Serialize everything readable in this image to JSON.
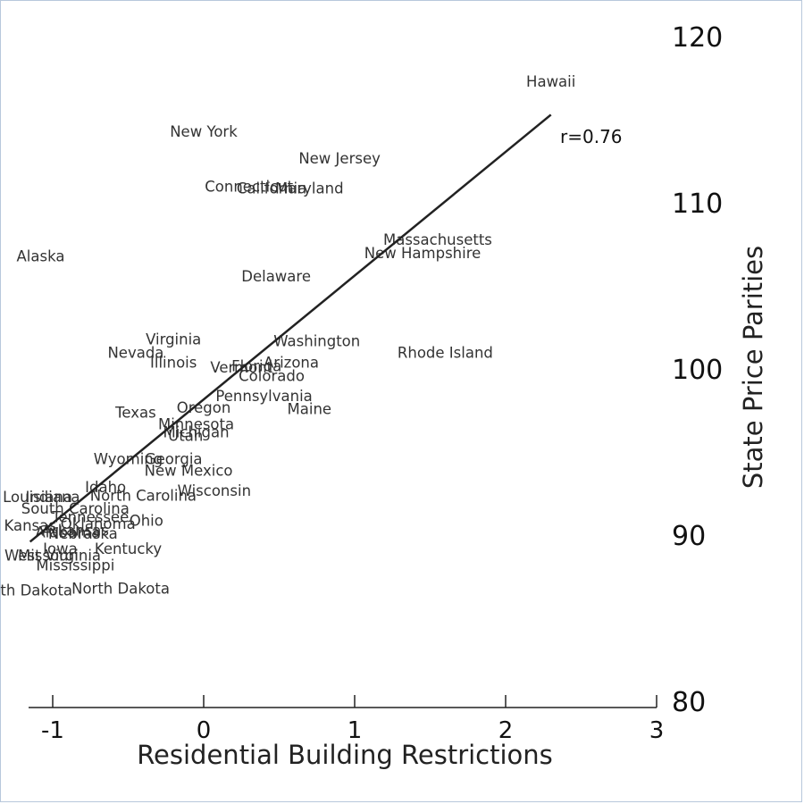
{
  "chart_data": {
    "type": "scatter",
    "xlabel": "Residential Building Restrictions",
    "ylabel": "State Price Parities",
    "xlim": [
      -1.15,
      3.0
    ],
    "ylim": [
      80,
      121
    ],
    "x_ticks": [
      -1,
      0,
      1,
      2,
      3
    ],
    "y_ticks": [
      80,
      90,
      100,
      110,
      120
    ],
    "annotation": "r=0.76",
    "trend_line": {
      "x": [
        -1.15,
        2.3
      ],
      "y": [
        89.6,
        115.3
      ]
    },
    "points": [
      {
        "label": "Hawaii",
        "x": 2.3,
        "y": 117.3
      },
      {
        "label": "New York",
        "x": 0.0,
        "y": 114.3
      },
      {
        "label": "New Jersey",
        "x": 0.9,
        "y": 112.7
      },
      {
        "label": "Connecticut",
        "x": 0.3,
        "y": 111.0
      },
      {
        "label": "California",
        "x": 0.45,
        "y": 110.9
      },
      {
        "label": "Maryland",
        "x": 0.7,
        "y": 110.9
      },
      {
        "label": "Massachusetts",
        "x": 1.55,
        "y": 107.8
      },
      {
        "label": "New Hampshire",
        "x": 1.45,
        "y": 107.0
      },
      {
        "label": "Alaska",
        "x": -1.08,
        "y": 106.8
      },
      {
        "label": "Delaware",
        "x": 0.48,
        "y": 105.6
      },
      {
        "label": "Virginia",
        "x": -0.2,
        "y": 101.8
      },
      {
        "label": "Washington",
        "x": 0.75,
        "y": 101.7
      },
      {
        "label": "Nevada",
        "x": -0.45,
        "y": 101.0
      },
      {
        "label": "Rhode Island",
        "x": 1.6,
        "y": 101.0
      },
      {
        "label": "Illinois",
        "x": -0.2,
        "y": 100.4
      },
      {
        "label": "Arizona",
        "x": 0.58,
        "y": 100.4
      },
      {
        "label": "Florida",
        "x": 0.35,
        "y": 100.2
      },
      {
        "label": "Vermont",
        "x": 0.25,
        "y": 100.1
      },
      {
        "label": "Colorado",
        "x": 0.45,
        "y": 99.6
      },
      {
        "label": "Pennsylvania",
        "x": 0.4,
        "y": 98.4
      },
      {
        "label": "Oregon",
        "x": 0.0,
        "y": 97.7
      },
      {
        "label": "Maine",
        "x": 0.7,
        "y": 97.6
      },
      {
        "label": "Texas",
        "x": -0.45,
        "y": 97.4
      },
      {
        "label": "Minnesota",
        "x": -0.05,
        "y": 96.7
      },
      {
        "label": "Michigan",
        "x": -0.05,
        "y": 96.2
      },
      {
        "label": "Utah",
        "x": -0.12,
        "y": 96.0
      },
      {
        "label": "Wyoming",
        "x": -0.5,
        "y": 94.6
      },
      {
        "label": "Georgia",
        "x": -0.2,
        "y": 94.6
      },
      {
        "label": "New Mexico",
        "x": -0.1,
        "y": 93.9
      },
      {
        "label": "Idaho",
        "x": -0.65,
        "y": 92.9
      },
      {
        "label": "Wisconsin",
        "x": 0.07,
        "y": 92.7
      },
      {
        "label": "Louisiana",
        "x": -1.1,
        "y": 92.3
      },
      {
        "label": "Indiana",
        "x": -1.0,
        "y": 92.3
      },
      {
        "label": "North Carolina",
        "x": -0.4,
        "y": 92.4
      },
      {
        "label": "South Carolina",
        "x": -0.85,
        "y": 91.6
      },
      {
        "label": "Tennessee",
        "x": -0.75,
        "y": 91.1
      },
      {
        "label": "Ohio",
        "x": -0.38,
        "y": 90.9
      },
      {
        "label": "Oklahoma",
        "x": -0.7,
        "y": 90.7
      },
      {
        "label": "Kansas",
        "x": -1.15,
        "y": 90.6
      },
      {
        "label": "Arkansas",
        "x": -0.85,
        "y": 90.3
      },
      {
        "label": "Alabama",
        "x": -0.9,
        "y": 90.2
      },
      {
        "label": "Nebraska",
        "x": -0.8,
        "y": 90.1
      },
      {
        "label": "Kentucky",
        "x": -0.5,
        "y": 89.2
      },
      {
        "label": "Iowa",
        "x": -0.95,
        "y": 89.2
      },
      {
        "label": "West Virginia",
        "x": -1.0,
        "y": 88.8
      },
      {
        "label": "Missouri",
        "x": -1.03,
        "y": 88.8
      },
      {
        "label": "Mississippi",
        "x": -0.85,
        "y": 88.2
      },
      {
        "label": "South Dakota",
        "x": -1.2,
        "y": 86.7
      },
      {
        "label": "North Dakota",
        "x": -0.55,
        "y": 86.8
      }
    ]
  }
}
